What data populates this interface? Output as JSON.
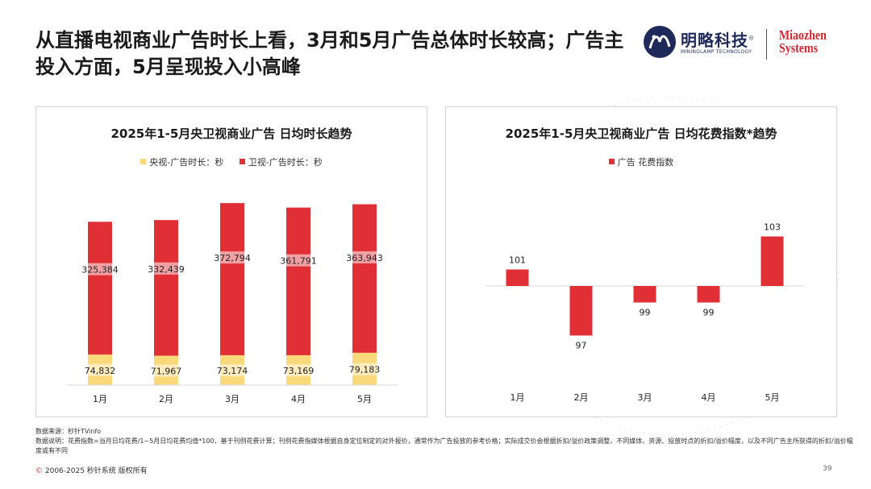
{
  "page": {
    "title": "从直播电视商业广告时长上看，3月和5月广告总体时长较高；广告主投入方面，5月呈现投入小高峰",
    "logo_mininglamp_cn": "明略科技",
    "logo_mininglamp_reg": "®",
    "logo_mininglamp_en": "MININGLAMP TECHNOLOGY",
    "logo_miaozhen_line1": "Miaozhen",
    "logo_miaozhen_line2": "Systems",
    "source": "数据来源：秒针TVinfo",
    "note": "数据说明：花费指数=当月日均花费/1~5月日均花费均值*100，基于刊例花费计算；刊例花费指媒体根据自身定位制定的对外报价，通常作为广告投放的参考价格；实际成交价会根据折扣/溢价政策调整，不同媒体、资源、投放时点的折扣/溢价幅度，以及不同广告主所获得的折扣/溢价幅度或有不同",
    "copyright_symbol": "©",
    "copyright": " 2006-2025 秒针系统 版权所有",
    "page_number": "39",
    "colors": {
      "red": "#e03035",
      "yellow": "#fad97a",
      "brand_red": "#d8262e",
      "brand_navy": "#1f2a5a"
    }
  },
  "chart_data": [
    {
      "type": "bar",
      "stacked": true,
      "title": "2025年1-5月央卫视商业广告 日均时长趋势",
      "categories": [
        "1月",
        "2月",
        "3月",
        "4月",
        "5月"
      ],
      "series": [
        {
          "name": "央视-广告时长：秒",
          "color": "#fad97a",
          "values": [
            74832,
            71967,
            73174,
            73169,
            79183
          ],
          "labels": [
            "74,832",
            "71,967",
            "73,174",
            "73,169",
            "79,183"
          ]
        },
        {
          "name": "卫视-广告时长：秒",
          "color": "#e03035",
          "values": [
            325384,
            332439,
            372794,
            361791,
            363943
          ],
          "labels": [
            "325,384",
            "332,439",
            "372,794",
            "361,791",
            "363,943"
          ]
        }
      ],
      "ylim": [
        0,
        460000
      ],
      "legend": "top-center",
      "grid": false
    },
    {
      "type": "bar",
      "title": "2025年1-5月央卫视商业广告 日均花费指数*趋势",
      "categories": [
        "1月",
        "2月",
        "3月",
        "4月",
        "5月"
      ],
      "series": [
        {
          "name": "广告 花费指数",
          "color": "#e03035",
          "values": [
            101,
            97,
            99,
            99,
            103
          ],
          "labels": [
            "101",
            "97",
            "99",
            "99",
            "103"
          ]
        }
      ],
      "baseline": 100,
      "ylim": [
        96,
        104
      ],
      "legend": "top-center",
      "grid": false
    }
  ]
}
